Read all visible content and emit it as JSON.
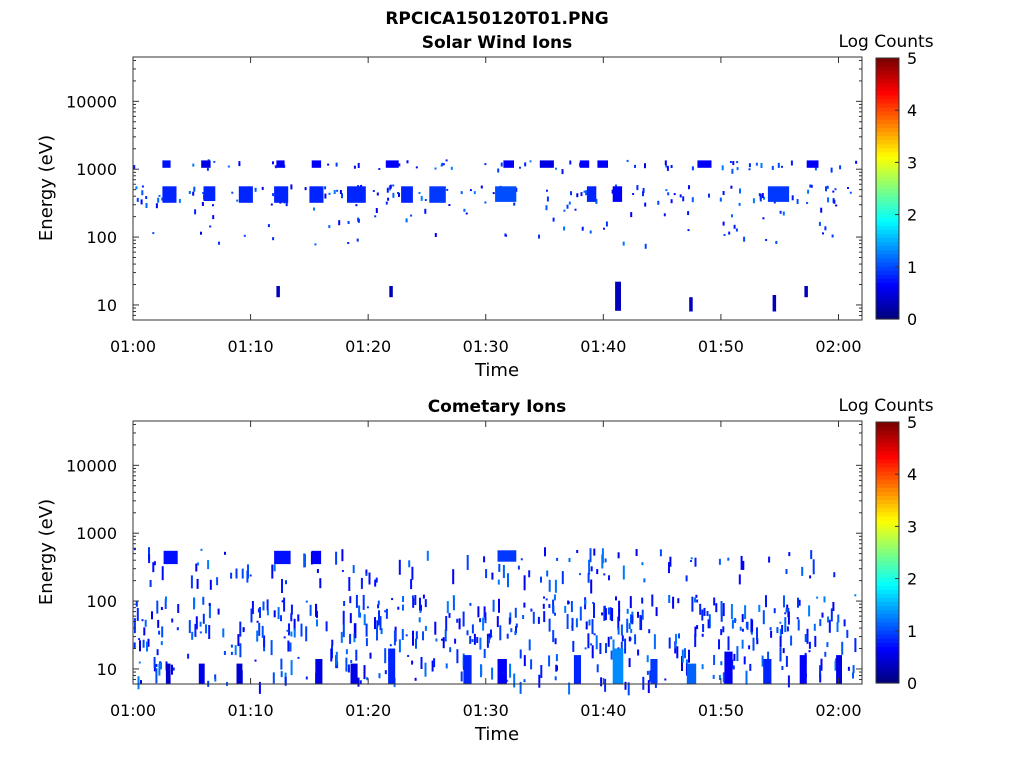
{
  "figure_title": "RPCICA150120T01.PNG",
  "chart_data": [
    {
      "type": "heatmap",
      "title": "Solar Wind Ions",
      "xlabel": "Time",
      "ylabel": "Energy (eV)",
      "yscale": "log",
      "ylim": [
        6,
        45000
      ],
      "xlim": [
        "01:00",
        "02:02"
      ],
      "x_ticks": [
        "01:00",
        "01:10",
        "01:20",
        "01:30",
        "01:40",
        "01:50",
        "02:00"
      ],
      "y_ticks": [
        "10",
        "100",
        "1000",
        "10000"
      ],
      "colorbar": {
        "label": "Log Counts",
        "ticks": [
          "0",
          "1",
          "2",
          "3",
          "4",
          "5"
        ],
        "range": [
          0,
          5
        ],
        "colormap": "jet"
      },
      "blocks": [
        {
          "t": [
            2.5,
            3.2
          ],
          "e": [
            1050,
            1350
          ],
          "v": 0.7
        },
        {
          "t": [
            2.5,
            3.7
          ],
          "e": [
            320,
            560
          ],
          "v": 0.8
        },
        {
          "t": [
            5.8,
            6.6
          ],
          "e": [
            1050,
            1350
          ],
          "v": 0.5
        },
        {
          "t": [
            6.0,
            7.0
          ],
          "e": [
            340,
            560
          ],
          "v": 0.8
        },
        {
          "t": [
            9.0,
            10.2
          ],
          "e": [
            320,
            560
          ],
          "v": 0.8
        },
        {
          "t": [
            12.0,
            13.2
          ],
          "e": [
            320,
            560
          ],
          "v": 0.8
        },
        {
          "t": [
            12.2,
            12.9
          ],
          "e": [
            1050,
            1350
          ],
          "v": 0.6
        },
        {
          "t": [
            15.0,
            16.2
          ],
          "e": [
            320,
            560
          ],
          "v": 0.8
        },
        {
          "t": [
            15.2,
            16.0
          ],
          "e": [
            1050,
            1350
          ],
          "v": 0.6
        },
        {
          "t": [
            18.2,
            19.8
          ],
          "e": [
            320,
            560
          ],
          "v": 0.8
        },
        {
          "t": [
            21.5,
            22.6
          ],
          "e": [
            1050,
            1350
          ],
          "v": 0.6
        },
        {
          "t": [
            22.8,
            23.8
          ],
          "e": [
            320,
            560
          ],
          "v": 0.8
        },
        {
          "t": [
            25.2,
            26.6
          ],
          "e": [
            320,
            560
          ],
          "v": 0.9
        },
        {
          "t": [
            30.8,
            32.6
          ],
          "e": [
            330,
            560
          ],
          "v": 1.0
        },
        {
          "t": [
            31.5,
            32.4
          ],
          "e": [
            1050,
            1350
          ],
          "v": 0.6
        },
        {
          "t": [
            34.6,
            35.8
          ],
          "e": [
            1050,
            1350
          ],
          "v": 0.5
        },
        {
          "t": [
            38.0,
            38.8
          ],
          "e": [
            1050,
            1350
          ],
          "v": 0.6
        },
        {
          "t": [
            39.5,
            40.4
          ],
          "e": [
            1050,
            1350
          ],
          "v": 0.6
        },
        {
          "t": [
            38.6,
            39.4
          ],
          "e": [
            330,
            560
          ],
          "v": 0.8
        },
        {
          "t": [
            40.8,
            41.6
          ],
          "e": [
            330,
            560
          ],
          "v": 0.6
        },
        {
          "t": [
            48.0,
            49.2
          ],
          "e": [
            1050,
            1350
          ],
          "v": 0.6
        },
        {
          "t": [
            54.0,
            55.8
          ],
          "e": [
            330,
            560
          ],
          "v": 0.9
        },
        {
          "t": [
            57.3,
            58.3
          ],
          "e": [
            1050,
            1350
          ],
          "v": 0.6
        },
        {
          "t": [
            41.0,
            41.5
          ],
          "e": [
            8.2,
            22
          ],
          "v": 0.3
        },
        {
          "t": [
            12.2,
            12.5
          ],
          "e": [
            13,
            19
          ],
          "v": 0.3
        },
        {
          "t": [
            21.8,
            22.1
          ],
          "e": [
            13,
            19
          ],
          "v": 0.3
        },
        {
          "t": [
            54.4,
            54.7
          ],
          "e": [
            8,
            14
          ],
          "v": 0.3
        },
        {
          "t": [
            47.3,
            47.6
          ],
          "e": [
            8,
            13
          ],
          "v": 0.3
        },
        {
          "t": [
            57.1,
            57.4
          ],
          "e": [
            13,
            19
          ],
          "v": 0.3
        }
      ],
      "scatter_seed": 11,
      "scatter_points": 260
    },
    {
      "type": "heatmap",
      "title": "Cometary Ions",
      "xlabel": "Time",
      "ylabel": "Energy (eV)",
      "yscale": "log",
      "ylim": [
        6,
        45000
      ],
      "xlim": [
        "01:00",
        "02:02"
      ],
      "x_ticks": [
        "01:00",
        "01:10",
        "01:20",
        "01:30",
        "01:40",
        "01:50",
        "02:00"
      ],
      "y_ticks": [
        "10",
        "100",
        "1000",
        "10000"
      ],
      "colorbar": {
        "label": "Log Counts",
        "ticks": [
          "0",
          "1",
          "2",
          "3",
          "4",
          "5"
        ],
        "range": [
          0,
          5
        ],
        "colormap": "jet"
      },
      "blocks": [
        {
          "t": [
            2.6,
            3.8
          ],
          "e": [
            350,
            550
          ],
          "v": 0.7
        },
        {
          "t": [
            12.0,
            13.4
          ],
          "e": [
            350,
            550
          ],
          "v": 0.7
        },
        {
          "t": [
            31.0,
            32.6
          ],
          "e": [
            380,
            560
          ],
          "v": 0.9
        },
        {
          "t": [
            15.2,
            16.0
          ],
          "e": [
            350,
            550
          ],
          "v": 0.6
        },
        {
          "t": [
            2.8,
            3.2
          ],
          "e": [
            6,
            12
          ],
          "v": 0.4
        },
        {
          "t": [
            5.6,
            6.1
          ],
          "e": [
            6,
            12
          ],
          "v": 0.5
        },
        {
          "t": [
            8.8,
            9.3
          ],
          "e": [
            6,
            12
          ],
          "v": 0.4
        },
        {
          "t": [
            15.5,
            16.1
          ],
          "e": [
            6,
            14
          ],
          "v": 0.5
        },
        {
          "t": [
            18.5,
            19.1
          ],
          "e": [
            6,
            12
          ],
          "v": 0.5
        },
        {
          "t": [
            21.7,
            22.3
          ],
          "e": [
            6,
            20
          ],
          "v": 0.8
        },
        {
          "t": [
            28.1,
            28.8
          ],
          "e": [
            6,
            16
          ],
          "v": 0.8
        },
        {
          "t": [
            31.0,
            31.8
          ],
          "e": [
            6,
            14
          ],
          "v": 0.6
        },
        {
          "t": [
            37.5,
            38.1
          ],
          "e": [
            6,
            16
          ],
          "v": 0.8
        },
        {
          "t": [
            40.8,
            41.7
          ],
          "e": [
            6,
            20
          ],
          "v": 1.3
        },
        {
          "t": [
            44.0,
            44.6
          ],
          "e": [
            6,
            14
          ],
          "v": 0.9
        },
        {
          "t": [
            47.1,
            47.9
          ],
          "e": [
            6,
            12
          ],
          "v": 1.1
        },
        {
          "t": [
            50.3,
            51.0
          ],
          "e": [
            6,
            18
          ],
          "v": 0.6
        },
        {
          "t": [
            53.6,
            54.3
          ],
          "e": [
            6,
            14
          ],
          "v": 0.8
        },
        {
          "t": [
            56.7,
            57.3
          ],
          "e": [
            6,
            16
          ],
          "v": 0.6
        },
        {
          "t": [
            59.8,
            60.3
          ],
          "e": [
            6,
            16
          ],
          "v": 0.5
        }
      ],
      "scatter_seed": 29,
      "scatter_points": 620
    }
  ]
}
